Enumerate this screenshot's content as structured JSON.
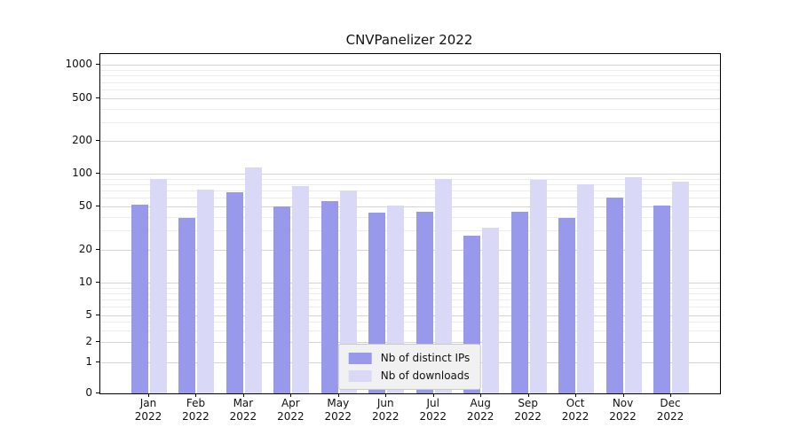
{
  "title": "CNVPanelizer 2022",
  "colors": {
    "distinct_ips": "#9999ec",
    "downloads": "#d9d9f7",
    "grid_major": "#d4d4d4",
    "grid_minor": "#ececec"
  },
  "legend": {
    "items": [
      {
        "label": "Nb of distinct IPs",
        "color": "#9999ec"
      },
      {
        "label": "Nb of downloads",
        "color": "#d9d9f7"
      }
    ]
  },
  "chart_data": {
    "type": "bar",
    "title": "CNVPanelizer 2022",
    "categories": [
      "Jan",
      "Feb",
      "Mar",
      "Apr",
      "May",
      "Jun",
      "Jul",
      "Aug",
      "Sep",
      "Oct",
      "Nov",
      "Dec"
    ],
    "year": "2022",
    "series": [
      {
        "name": "Nb of distinct IPs",
        "color": "#9999ec",
        "values": [
          52,
          39,
          68,
          50,
          56,
          44,
          45,
          27,
          45,
          39,
          60,
          51
        ]
      },
      {
        "name": "Nb of downloads",
        "color": "#d9d9f7",
        "values": [
          90,
          71,
          115,
          77,
          70,
          51,
          90,
          32,
          88,
          80,
          93,
          84
        ]
      }
    ],
    "yscale": "symlog",
    "yticks": [
      0,
      1,
      2,
      5,
      10,
      20,
      50,
      100,
      200,
      500,
      1000
    ],
    "minor_gridline_values": [
      3,
      4,
      6,
      7,
      8,
      9,
      30,
      40,
      60,
      70,
      80,
      90,
      300,
      400,
      600,
      700,
      800,
      900
    ],
    "grid": true,
    "legend_position": "lower center",
    "xlabel": "",
    "ylabel": ""
  }
}
